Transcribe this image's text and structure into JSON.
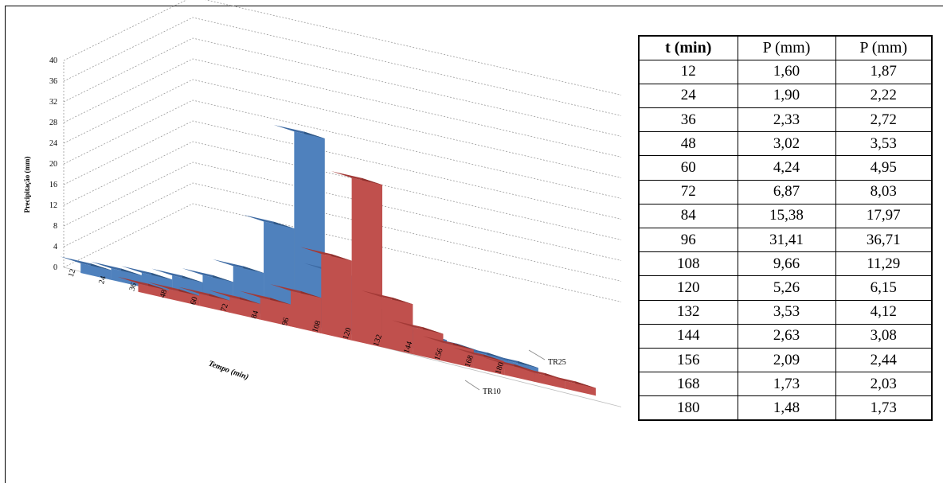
{
  "chart_data": {
    "type": "bar",
    "subtype": "3d-column",
    "xlabel": "Tempo (min)",
    "ylabel": "Precipitação (mm)",
    "ylim": [
      0,
      40
    ],
    "yticks": [
      0,
      4,
      8,
      12,
      16,
      20,
      24,
      28,
      32,
      36,
      40
    ],
    "categories": [
      "12",
      "24",
      "36",
      "48",
      "60",
      "72",
      "84",
      "96",
      "108",
      "120",
      "132",
      "144",
      "156",
      "168",
      "180"
    ],
    "series": [
      {
        "name": "TR10",
        "color": "#c0392b",
        "values": [
          1.6,
          1.9,
          2.33,
          3.02,
          4.24,
          6.87,
          15.38,
          31.41,
          9.66,
          5.26,
          3.53,
          2.63,
          2.09,
          1.73,
          1.48
        ]
      },
      {
        "name": "TR25",
        "color": "#4a7fc1",
        "values": [
          1.87,
          2.22,
          2.72,
          3.53,
          4.95,
          8.03,
          17.97,
          36.71,
          11.29,
          6.15,
          4.12,
          3.08,
          2.44,
          2.03,
          1.73
        ]
      }
    ],
    "grid": true
  },
  "table": {
    "headers": [
      "t (min)",
      "P (mm)",
      "P (mm)"
    ],
    "rows": [
      [
        "12",
        "1,60",
        "1,87"
      ],
      [
        "24",
        "1,90",
        "2,22"
      ],
      [
        "36",
        "2,33",
        "2,72"
      ],
      [
        "48",
        "3,02",
        "3,53"
      ],
      [
        "60",
        "4,24",
        "4,95"
      ],
      [
        "72",
        "6,87",
        "8,03"
      ],
      [
        "84",
        "15,38",
        "17,97"
      ],
      [
        "96",
        "31,41",
        "36,71"
      ],
      [
        "108",
        "9,66",
        "11,29"
      ],
      [
        "120",
        "5,26",
        "6,15"
      ],
      [
        "132",
        "3,53",
        "4,12"
      ],
      [
        "144",
        "2,63",
        "3,08"
      ],
      [
        "156",
        "2,09",
        "2,44"
      ],
      [
        "168",
        "1,73",
        "2,03"
      ],
      [
        "180",
        "1,48",
        "1,73"
      ]
    ]
  },
  "colors": {
    "tr10_front": "#c0504d",
    "tr10_top": "#a33a37",
    "tr10_side": "#8e302d",
    "tr25_front": "#4f81bd",
    "tr25_top": "#3d6aa3",
    "tr25_side": "#2f5683"
  }
}
